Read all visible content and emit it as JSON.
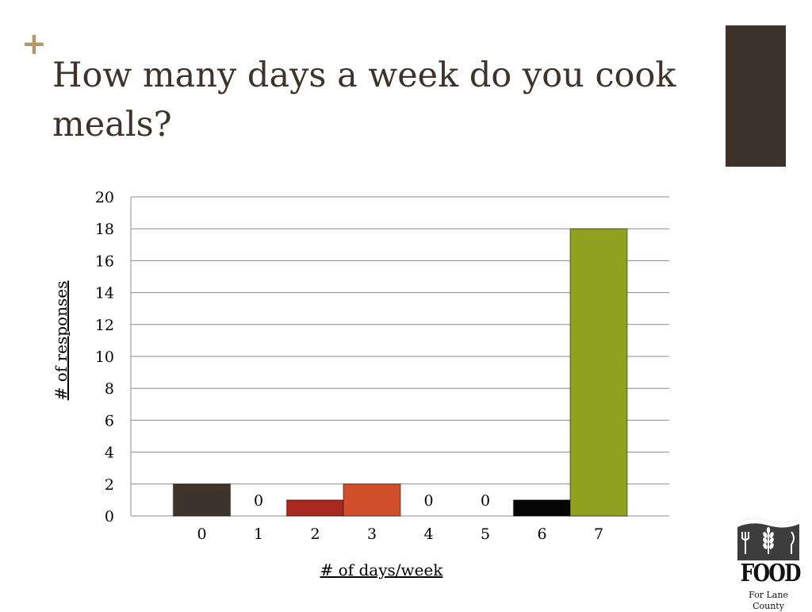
{
  "slide": {
    "bullet": "+",
    "title": "How many days a week do you cook meals?",
    "accent_color": "#3d332a",
    "bullet_color": "#b3976b"
  },
  "logo": {
    "word": "FOOD",
    "subtitle": "For Lane County"
  },
  "chart_data": {
    "type": "bar",
    "title": "",
    "xlabel": "# of days/week",
    "ylabel": "# of responses",
    "categories": [
      "0",
      "1",
      "2",
      "3",
      "4",
      "5",
      "6",
      "7"
    ],
    "values": [
      2,
      0,
      1,
      2,
      0,
      0,
      1,
      18
    ],
    "colors": [
      "#3f342b",
      "#3f342b",
      "#a8291f",
      "#d1502b",
      "#3f342b",
      "#3f342b",
      "#050505",
      "#8fa21f"
    ],
    "data_labels": [
      "",
      "0",
      "",
      "",
      "0",
      "0",
      "",
      ""
    ],
    "yticks": [
      0,
      2,
      4,
      6,
      8,
      10,
      12,
      14,
      16,
      18,
      20
    ],
    "ylim": [
      0,
      20
    ],
    "grid": true,
    "legend": "none"
  }
}
